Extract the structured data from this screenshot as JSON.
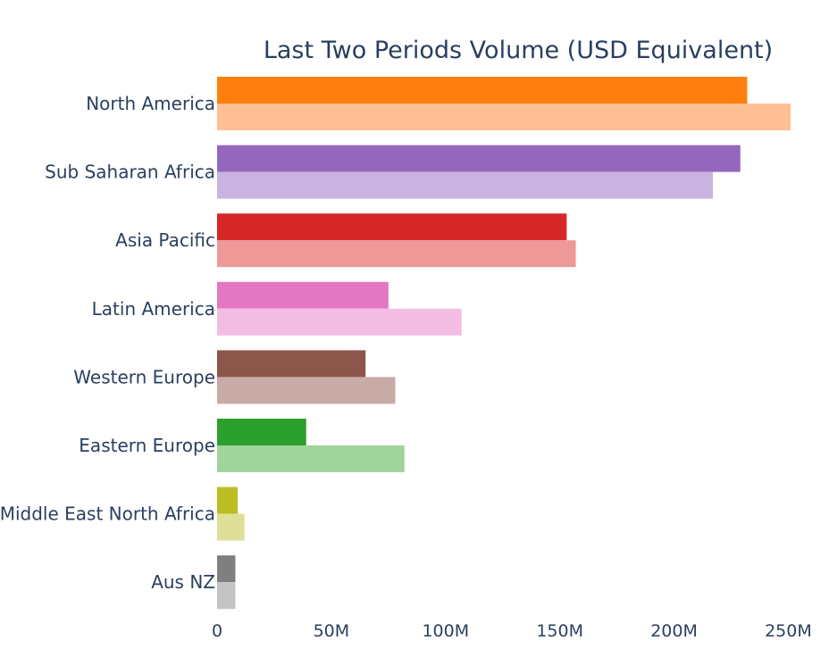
{
  "chart_data": {
    "type": "bar",
    "orientation": "horizontal",
    "title": "Last Two Periods Volume (USD Equivalent)",
    "xlabel": "",
    "ylabel": "",
    "xlim": [
      0,
      260
    ],
    "grid": false,
    "legend": "none",
    "categories": [
      "North America",
      "Sub Saharan Africa",
      "Asia Pacific",
      "Latin America",
      "Western Europe",
      "Eastern Europe",
      "Middle East North Africa",
      "Aus NZ"
    ],
    "x_ticks": [
      {
        "value": 0,
        "label": "0"
      },
      {
        "value": 50,
        "label": "50M"
      },
      {
        "value": 100,
        "label": "100M"
      },
      {
        "value": 150,
        "label": "150M"
      },
      {
        "value": 200,
        "label": "200M"
      },
      {
        "value": 250,
        "label": "250M"
      }
    ],
    "series": [
      {
        "values": [
          232,
          229,
          153,
          75,
          65,
          39,
          9,
          8
        ],
        "colors": [
          "#ff7f0e",
          "#9467bd",
          "#d62728",
          "#e377c2",
          "#8c564b",
          "#2ca02c",
          "#bcbd22",
          "#7f7f7f"
        ]
      },
      {
        "values": [
          251,
          217,
          157,
          107,
          78,
          82,
          12,
          8
        ],
        "colors": [
          "#ffbf94",
          "#c9b3e1",
          "#ee9898",
          "#f3bde3",
          "#c8aaa6",
          "#a0d49a",
          "#dfe098",
          "#c4c4c4"
        ]
      }
    ]
  }
}
